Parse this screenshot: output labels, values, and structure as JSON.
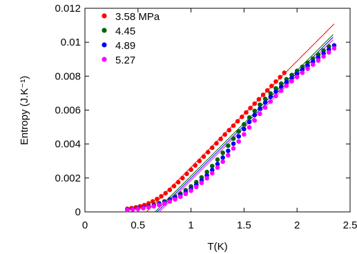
{
  "chart_data": {
    "type": "scatter",
    "xlabel": "T(K)",
    "ylabel": "Entropy (J.K⁻¹)",
    "xlim": [
      0,
      2.5
    ],
    "ylim": [
      0,
      0.012
    ],
    "x_ticks": [
      {
        "value": 0,
        "label": "0"
      },
      {
        "value": 0.5,
        "label": "0.5"
      },
      {
        "value": 1,
        "label": "1"
      },
      {
        "value": 1.5,
        "label": "1.5"
      },
      {
        "value": 2,
        "label": "2"
      },
      {
        "value": 2.5,
        "label": "2.5"
      }
    ],
    "y_ticks": [
      {
        "value": 0,
        "label": "0"
      },
      {
        "value": 0.002,
        "label": "0.002"
      },
      {
        "value": 0.004,
        "label": "0.004"
      },
      {
        "value": 0.006,
        "label": "0.006"
      },
      {
        "value": 0.008,
        "label": "0.008"
      },
      {
        "value": 0.01,
        "label": "0.01"
      },
      {
        "value": 0.012,
        "label": "0.012"
      }
    ],
    "grid": false,
    "legend_position": "top-left",
    "series": [
      {
        "name": "3.58 MPa",
        "color": "#ff0000",
        "x": [
          0.4,
          0.44,
          0.48,
          0.52,
          0.56,
          0.6,
          0.64,
          0.68,
          0.72,
          0.76,
          0.8,
          0.84,
          0.88,
          0.92,
          0.96,
          1.0,
          1.04,
          1.08,
          1.12,
          1.16,
          1.2,
          1.24,
          1.28,
          1.32,
          1.36,
          1.4,
          1.44,
          1.48,
          1.52,
          1.56,
          1.6,
          1.64,
          1.68,
          1.72,
          1.76,
          1.8,
          1.84,
          1.88
        ],
        "y": [
          0.00018,
          0.00022,
          0.00027,
          0.00033,
          0.0004,
          0.0005,
          0.00062,
          0.00076,
          0.00092,
          0.0011,
          0.0013,
          0.00152,
          0.00175,
          0.00199,
          0.00224,
          0.00249,
          0.00274,
          0.003,
          0.00326,
          0.00352,
          0.00378,
          0.00404,
          0.0043,
          0.00456,
          0.00482,
          0.00508,
          0.00534,
          0.0056,
          0.00586,
          0.00612,
          0.00638,
          0.00664,
          0.0069,
          0.00716,
          0.00742,
          0.00768,
          0.00794,
          0.0082
        ]
      },
      {
        "name": "4.45",
        "color": "#006400",
        "x": [
          0.4,
          0.45,
          0.5,
          0.55,
          0.6,
          0.65,
          0.7,
          0.75,
          0.8,
          0.85,
          0.9,
          0.95,
          1.0,
          1.05,
          1.1,
          1.15,
          1.2,
          1.25,
          1.3,
          1.35,
          1.4,
          1.45,
          1.5,
          1.55,
          1.6,
          1.65,
          1.7,
          1.75,
          1.8,
          1.85,
          1.9,
          1.95,
          2.0,
          2.05,
          2.1,
          2.15,
          2.2,
          2.25,
          2.3
        ],
        "y": [
          0.00015,
          0.00018,
          0.00022,
          0.00027,
          0.00033,
          0.00041,
          0.00051,
          0.00062,
          0.00075,
          0.0009,
          0.00108,
          0.00128,
          0.0015,
          0.00175,
          0.00203,
          0.00235,
          0.0027,
          0.00308,
          0.00348,
          0.0039,
          0.00432,
          0.00474,
          0.00516,
          0.00556,
          0.00595,
          0.00632,
          0.00666,
          0.00698,
          0.00728,
          0.00756,
          0.00782,
          0.00807,
          0.00831,
          0.00855,
          0.00879,
          0.00903,
          0.00927,
          0.00951,
          0.00975
        ]
      },
      {
        "name": "4.89",
        "color": "#0000ff",
        "x": [
          0.4,
          0.45,
          0.5,
          0.55,
          0.6,
          0.65,
          0.7,
          0.75,
          0.8,
          0.85,
          0.9,
          0.95,
          1.0,
          1.05,
          1.1,
          1.15,
          1.2,
          1.25,
          1.3,
          1.35,
          1.4,
          1.45,
          1.5,
          1.55,
          1.6,
          1.65,
          1.7,
          1.75,
          1.8,
          1.85,
          1.9,
          1.95,
          2.0,
          2.05,
          2.1,
          2.15,
          2.2,
          2.25,
          2.3,
          2.35
        ],
        "y": [
          0.00013,
          0.00016,
          0.0002,
          0.00025,
          0.0003,
          0.00037,
          0.00046,
          0.00056,
          0.00068,
          0.00082,
          0.00098,
          0.00116,
          0.00137,
          0.0016,
          0.00186,
          0.00215,
          0.00247,
          0.00282,
          0.0032,
          0.0036,
          0.00402,
          0.00445,
          0.00488,
          0.0053,
          0.00571,
          0.00609,
          0.00645,
          0.00678,
          0.00709,
          0.00737,
          0.00764,
          0.00789,
          0.00813,
          0.00837,
          0.00861,
          0.00885,
          0.00909,
          0.00933,
          0.00957,
          0.00981
        ]
      },
      {
        "name": "5.27",
        "color": "#ff00ff",
        "x": [
          0.4,
          0.45,
          0.5,
          0.55,
          0.6,
          0.65,
          0.7,
          0.75,
          0.8,
          0.85,
          0.9,
          0.95,
          1.0,
          1.05,
          1.1,
          1.15,
          1.2,
          1.25,
          1.3,
          1.35,
          1.4,
          1.45,
          1.5,
          1.55,
          1.6,
          1.65,
          1.7,
          1.75,
          1.8,
          1.85,
          1.9,
          1.95,
          2.0,
          2.05,
          2.1,
          2.15,
          2.2,
          2.25,
          2.3,
          2.35
        ],
        "y": [
          0.00012,
          0.00015,
          0.00018,
          0.00022,
          0.00027,
          0.00033,
          0.00041,
          0.0005,
          0.00061,
          0.00074,
          0.00089,
          0.00106,
          0.00125,
          0.00147,
          0.00171,
          0.00198,
          0.00228,
          0.00261,
          0.00296,
          0.00334,
          0.00374,
          0.00415,
          0.00457,
          0.00498,
          0.00539,
          0.00578,
          0.00615,
          0.0065,
          0.00683,
          0.00714,
          0.00743,
          0.0077,
          0.00795,
          0.0082,
          0.00844,
          0.00868,
          0.00892,
          0.00916,
          0.0094,
          0.00964
        ]
      }
    ],
    "fit_lines": [
      {
        "color": "#ff0000",
        "x": [
          0.58,
          2.35
        ],
        "y": [
          0.0,
          0.01108
        ]
      },
      {
        "color": "#006400",
        "x": [
          0.66,
          2.34
        ],
        "y": [
          0.0,
          0.01045
        ]
      },
      {
        "color": "#0000ff",
        "x": [
          0.68,
          2.34
        ],
        "y": [
          0.0,
          0.0103
        ]
      },
      {
        "color": "#ff00ff",
        "x": [
          0.7,
          2.34
        ],
        "y": [
          0.0,
          0.01015
        ]
      }
    ]
  }
}
